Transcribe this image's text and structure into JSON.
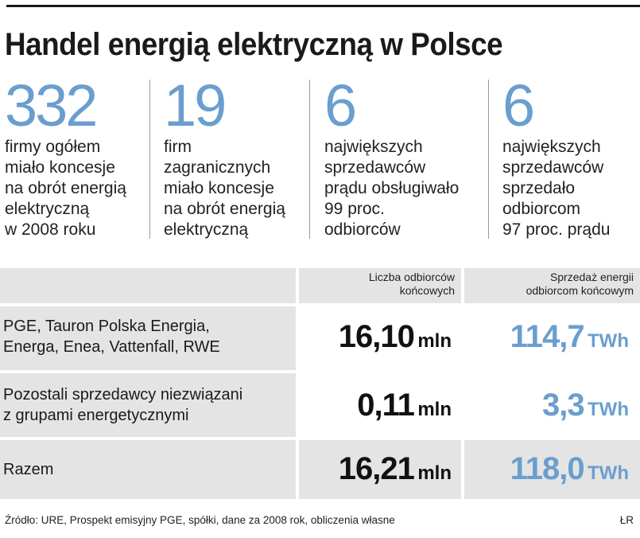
{
  "title": "Handel energią elektryczną  w Polsce",
  "stats": [
    {
      "number": "332",
      "lines": [
        "firmy ogółem",
        "miało  koncesje",
        "na obrót energią",
        "elektryczną",
        "w 2008 roku"
      ]
    },
    {
      "number": "19",
      "lines": [
        "firm",
        "zagranicznych",
        "miało koncesje",
        "na obrót energią",
        "elektryczną"
      ]
    },
    {
      "number": "6",
      "lines": [
        "największych",
        "sprzedawców",
        "prądu obsługiwało",
        "99 proc.",
        "odbiorców"
      ]
    },
    {
      "number": "6",
      "lines": [
        "największych",
        "sprzedawców",
        "sprzedało",
        "odbiorcom",
        "97 proc. prądu"
      ]
    }
  ],
  "table": {
    "headers": {
      "customers": [
        "Liczba odbiorców",
        "końcowych"
      ],
      "sales": [
        "Sprzedaż energii",
        "odbiorcom końcowym"
      ]
    },
    "rows": [
      {
        "label_lines": [
          "PGE, Tauron Polska Energia,",
          "Energa, Enea, Vattenfall, RWE"
        ],
        "customers": "16,10",
        "customers_unit": "mln",
        "sales": "114,7",
        "sales_unit": "TWh"
      },
      {
        "label_lines": [
          "Pozostali  sprzedawcy niezwiązani",
          "z grupami energetycznymi"
        ],
        "customers": "0,11",
        "customers_unit": "mln",
        "sales": "3,3",
        "sales_unit": "TWh"
      },
      {
        "label_lines": [
          "Razem"
        ],
        "customers": "16,21",
        "customers_unit": "mln",
        "sales": "118,0",
        "sales_unit": "TWh"
      }
    ]
  },
  "source": "Źródło: URE, Prospekt emisyjny PGE, spółki, dane za 2008 rok, obliczenia własne",
  "credit": "ŁR",
  "colors": {
    "accent": "#6a9ecf",
    "row_gray": "#e4e4e4",
    "text": "#1a1a1a"
  }
}
